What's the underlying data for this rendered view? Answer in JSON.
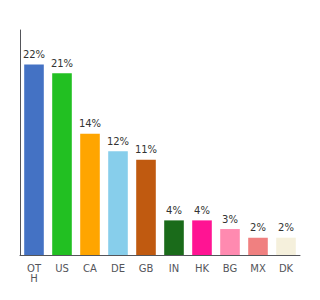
{
  "chart_data": {
    "type": "bar",
    "categories": [
      "OT\nH",
      "US",
      "CA",
      "DE",
      "GB",
      "IN",
      "HK",
      "BG",
      "MX",
      "DK"
    ],
    "values": [
      22,
      21,
      14,
      12,
      11,
      4,
      4,
      3,
      2,
      2
    ],
    "value_labels": [
      "22%",
      "21%",
      "14%",
      "12%",
      "11%",
      "4%",
      "4%",
      "3%",
      "2%",
      "2%"
    ],
    "colors": [
      "#4472c4",
      "#22c022",
      "#ffa500",
      "#87ceeb",
      "#c05a10",
      "#1a6b1a",
      "#ff1493",
      "#ff8ab0",
      "#f08080",
      "#f5f0dc"
    ],
    "ylim": [
      0,
      26
    ],
    "data_labels": true,
    "grid": false,
    "tick_labels": "x"
  }
}
